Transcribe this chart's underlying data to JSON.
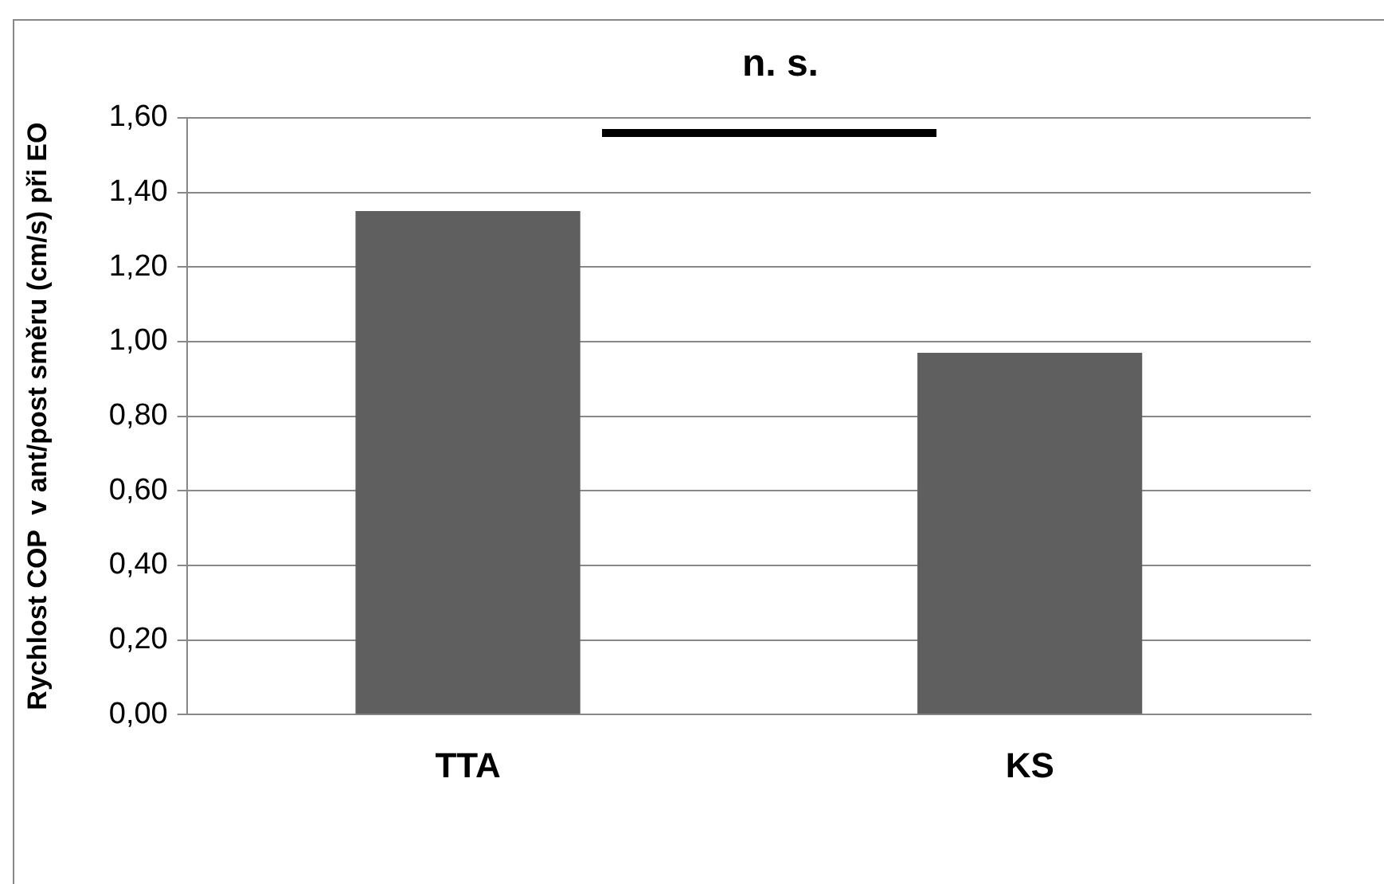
{
  "chart_data": {
    "type": "bar",
    "ylabel": "Rychlost COP  v ant/post směru (cm/s) při EO",
    "annotations": [
      "n. s."
    ],
    "categories": [
      "TTA",
      "KS"
    ],
    "values": [
      1.35,
      0.97
    ],
    "color": "#5f5f5f",
    "ylim": [
      0,
      1.6
    ],
    "yticks": [
      {
        "value": 0,
        "label": "0,00"
      },
      {
        "value": 0.2,
        "label": "0,20"
      },
      {
        "value": 0.4,
        "label": "0,40"
      },
      {
        "value": 0.6,
        "label": "0,60"
      },
      {
        "value": 0.8,
        "label": "0,80"
      },
      {
        "value": 1,
        "label": "1,00"
      },
      {
        "value": 1.2,
        "label": "1,20"
      },
      {
        "value": 1.4,
        "label": "1,40"
      },
      {
        "value": 1.6,
        "label": "1,60"
      }
    ],
    "grid": "y"
  }
}
